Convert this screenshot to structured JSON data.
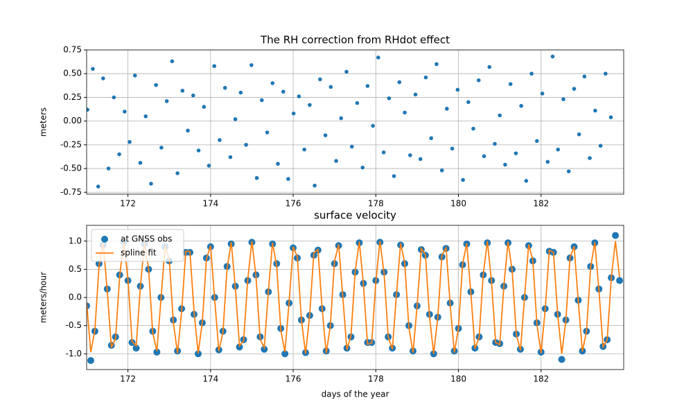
{
  "chart_data": [
    {
      "type": "scatter",
      "title": "The RH correction from RHdot effect",
      "y_label": "meters",
      "color": "#1f77b4",
      "xlim": [
        171.0,
        184.0
      ],
      "ylim": [
        -0.77,
        0.75
      ],
      "grid": true,
      "xticks": [
        172,
        174,
        176,
        178,
        180,
        182
      ],
      "yticks": [
        -0.75,
        {
          "value": -0.5,
          "label": "-0.50"
        },
        -0.25,
        {
          "value": 0,
          "label": "0.00"
        },
        0.25,
        {
          "value": 0.5,
          "label": "0.50"
        },
        0.75
      ],
      "x": [
        171.02,
        171.15,
        171.28,
        171.4,
        171.53,
        171.66,
        171.79,
        171.92,
        172.04,
        172.17,
        172.3,
        172.43,
        172.56,
        172.68,
        172.81,
        172.94,
        173.07,
        173.2,
        173.32,
        173.45,
        173.58,
        173.71,
        173.84,
        173.96,
        174.09,
        174.22,
        174.35,
        174.48,
        174.6,
        174.73,
        174.86,
        174.99,
        175.12,
        175.24,
        175.37,
        175.5,
        175.63,
        175.76,
        175.88,
        176.01,
        176.14,
        176.27,
        176.4,
        176.52,
        176.65,
        176.78,
        176.91,
        177.04,
        177.16,
        177.29,
        177.42,
        177.55,
        177.68,
        177.8,
        177.93,
        178.06,
        178.19,
        178.32,
        178.44,
        178.57,
        178.7,
        178.83,
        178.96,
        179.08,
        179.21,
        179.34,
        179.47,
        179.6,
        179.72,
        179.85,
        179.98,
        180.11,
        180.24,
        180.36,
        180.49,
        180.62,
        180.75,
        180.88,
        181,
        181.13,
        181.26,
        181.39,
        181.52,
        181.64,
        181.77,
        181.9,
        182.03,
        182.16,
        182.28,
        182.41,
        182.54,
        182.67,
        182.8,
        182.92,
        183.05,
        183.18,
        183.31,
        183.44,
        183.56,
        183.69
      ],
      "values": [
        0.12,
        0.55,
        -0.69,
        0.45,
        -0.5,
        0.25,
        -0.35,
        0.1,
        -0.22,
        0.48,
        -0.44,
        0.05,
        -0.66,
        0.38,
        -0.28,
        0.21,
        0.63,
        -0.55,
        0.32,
        -0.1,
        0.27,
        -0.31,
        0.15,
        -0.47,
        0.58,
        -0.2,
        0.35,
        -0.38,
        0.02,
        0.3,
        -0.25,
        0.59,
        -0.6,
        0.22,
        -0.12,
        0.4,
        -0.45,
        0.31,
        -0.61,
        0.08,
        0.26,
        -0.3,
        0.17,
        -0.68,
        0.44,
        -0.15,
        0.36,
        -0.42,
        0.03,
        0.52,
        -0.27,
        0.19,
        -0.49,
        0.37,
        -0.05,
        0.67,
        -0.33,
        0.24,
        -0.58,
        0.41,
        0.09,
        -0.36,
        0.28,
        -0.4,
        0.46,
        -0.18,
        0.6,
        -0.52,
        0.13,
        -0.29,
        0.33,
        -0.62,
        0.2,
        -0.08,
        0.43,
        -0.37,
        0.57,
        -0.24,
        0.06,
        -0.46,
        0.39,
        -0.34,
        0.16,
        -0.63,
        0.5,
        -0.21,
        0.29,
        -0.43,
        0.68,
        -0.3,
        0.23,
        -0.53,
        0.34,
        -0.14,
        0.47,
        -0.39,
        0.11,
        -0.26,
        0.5,
        0.04
      ]
    },
    {
      "type": "line",
      "title": "surface velocity",
      "y_label": "meters/hour",
      "x_label": "days of the year",
      "xlim": [
        171.0,
        184.0
      ],
      "ylim": [
        -1.28,
        1.28
      ],
      "grid": true,
      "legend": "upper left",
      "xticks": [
        172,
        174,
        176,
        178,
        180,
        182
      ],
      "yticks": [
        {
          "value": -1,
          "label": "-1.0"
        },
        -0.5,
        {
          "value": 0,
          "label": "0.0"
        },
        0.5,
        {
          "value": 1,
          "label": "1.0"
        }
      ],
      "x": [
        171,
        171.1,
        171.2,
        171.3,
        171.4,
        171.5,
        171.6,
        171.7,
        171.8,
        171.9,
        172,
        172.1,
        172.2,
        172.3,
        172.4,
        172.5,
        172.6,
        172.7,
        172.8,
        172.9,
        173,
        173.1,
        173.2,
        173.3,
        173.4,
        173.5,
        173.6,
        173.7,
        173.8,
        173.9,
        174,
        174.1,
        174.2,
        174.3,
        174.4,
        174.5,
        174.6,
        174.7,
        174.8,
        174.9,
        175,
        175.1,
        175.2,
        175.3,
        175.4,
        175.5,
        175.6,
        175.7,
        175.8,
        175.9,
        176,
        176.1,
        176.2,
        176.3,
        176.4,
        176.5,
        176.6,
        176.7,
        176.8,
        176.9,
        177,
        177.1,
        177.2,
        177.3,
        177.4,
        177.5,
        177.6,
        177.7,
        177.8,
        177.9,
        178,
        178.1,
        178.2,
        178.3,
        178.4,
        178.5,
        178.6,
        178.7,
        178.8,
        178.9,
        179,
        179.1,
        179.2,
        179.3,
        179.4,
        179.5,
        179.6,
        179.7,
        179.8,
        179.9,
        180,
        180.1,
        180.2,
        180.3,
        180.4,
        180.5,
        180.6,
        180.7,
        180.8,
        180.9,
        181,
        181.1,
        181.2,
        181.3,
        181.4,
        181.5,
        181.6,
        181.7,
        181.8,
        181.9,
        182,
        182.1,
        182.2,
        182.3,
        182.4,
        182.5,
        182.6,
        182.7,
        182.8,
        182.9,
        183,
        183.1,
        183.2,
        183.3,
        183.4,
        183.5,
        183.6,
        183.7,
        183.8,
        183.9
      ],
      "series": [
        {
          "name": "at GNSS obs",
          "color": "#1f77b4",
          "marker": true,
          "values": [
            -0.15,
            -1.12,
            -0.6,
            0.6,
            0.93,
            0.15,
            -0.85,
            -0.7,
            0.4,
            0.98,
            0.3,
            -0.8,
            -0.9,
            0.2,
            0.95,
            0.5,
            -0.6,
            -0.97,
            0.0,
            0.9,
            0.65,
            -0.4,
            -0.95,
            -0.2,
            0.8,
            0.8,
            -0.3,
            -1.0,
            -0.45,
            0.7,
            0.9,
            0.0,
            -0.93,
            -0.6,
            0.55,
            0.95,
            0.2,
            -0.88,
            -0.75,
            0.3,
            0.98,
            0.4,
            -0.7,
            -0.92,
            0.1,
            0.95,
            0.6,
            -0.55,
            -1.0,
            -0.1,
            0.88,
            0.7,
            -0.4,
            -0.98,
            -0.32,
            0.75,
            0.84,
            -0.2,
            -0.95,
            -0.5,
            0.6,
            0.92,
            0.05,
            -0.9,
            -0.7,
            0.45,
            0.97,
            0.25,
            -0.8,
            -0.8,
            0.3,
            0.98,
            0.45,
            -0.7,
            -0.9,
            0.05,
            0.93,
            0.6,
            -0.5,
            -0.95,
            -0.15,
            0.85,
            0.75,
            -0.3,
            -1.0,
            -0.35,
            0.72,
            0.87,
            -0.1,
            -0.95,
            -0.55,
            0.58,
            0.95,
            0.1,
            -0.9,
            -0.7,
            0.4,
            0.97,
            0.3,
            -0.8,
            -0.82,
            0.2,
            0.97,
            0.5,
            -0.65,
            -0.92,
            0.0,
            0.92,
            0.65,
            -0.45,
            -0.97,
            -0.2,
            0.82,
            0.8,
            -0.3,
            -1.1,
            -0.4,
            0.7,
            0.9,
            -0.05,
            -0.95,
            -0.6,
            0.55,
            0.97,
            0.15,
            -0.87,
            -0.75,
            0.35,
            1.1,
            0.3
          ]
        },
        {
          "name": "spline fit",
          "color": "#ff7f0e",
          "marker": false,
          "values": [
            -0.1,
            -0.97,
            -0.58,
            0.56,
            0.97,
            0.11,
            -0.89,
            -0.73,
            0.38,
            1.0,
            0.32,
            -0.78,
            -0.86,
            0.18,
            0.98,
            0.51,
            -0.63,
            -0.95,
            -0.03,
            0.92,
            0.68,
            -0.45,
            -0.99,
            -0.25,
            0.82,
            0.82,
            -0.25,
            -0.99,
            -0.44,
            0.68,
            0.92,
            -0.04,
            -0.95,
            -0.62,
            0.52,
            0.98,
            0.17,
            -0.86,
            -0.77,
            0.32,
            1.0,
            0.37,
            -0.74,
            -0.89,
            0.12,
            0.97,
            0.56,
            -0.58,
            -0.97,
            -0.09,
            0.9,
            0.72,
            -0.4,
            -1.0,
            -0.3,
            0.79,
            0.85,
            -0.19,
            -0.99,
            -0.5,
            0.64,
            0.94,
            0.02,
            -0.93,
            -0.67,
            0.46,
            0.99,
            0.23,
            -0.83,
            -0.81,
            0.27,
            1.0,
            0.43,
            -0.7,
            -0.92,
            0.06,
            0.96,
            0.61,
            -0.53,
            -0.98,
            -0.15,
            0.87,
            0.76,
            -0.34,
            -1.0,
            -0.36,
            0.75,
            0.88,
            -0.13,
            -0.98,
            -0.55,
            0.59,
            0.96,
            0.08,
            -0.91,
            -0.71,
            0.41,
            1.0,
            0.29,
            -0.8,
            -0.84,
            0.21,
            0.99,
            0.48,
            -0.65,
            -0.94,
            0.0,
            0.94,
            0.66,
            -0.48,
            -0.99,
            -0.21,
            0.84,
            0.8,
            -0.28,
            -1.0,
            -0.41,
            0.71,
            0.91,
            -0.07,
            -0.96,
            -0.6,
            0.54,
            0.98,
            0.14,
            -0.88,
            -0.75,
            0.35,
            1.0,
            0.36
          ]
        }
      ]
    }
  ]
}
